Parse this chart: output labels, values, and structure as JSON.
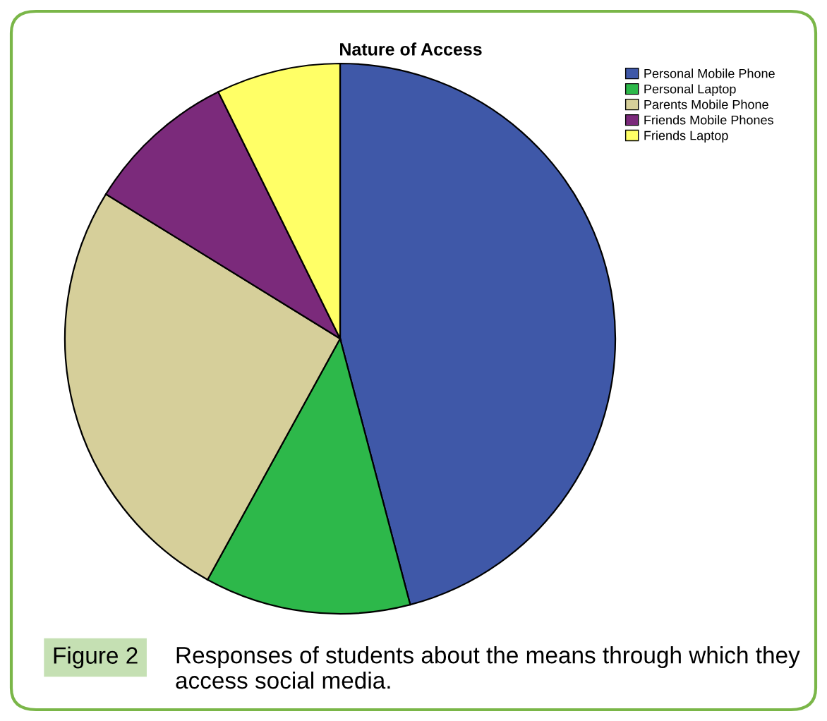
{
  "chart_data": {
    "type": "pie",
    "title": "Nature of Access",
    "categories": [
      "Personal Mobile Phone",
      "Personal Laptop",
      "Parents Mobile Phone",
      "Friends Mobile Phones",
      "Friends Laptop"
    ],
    "values": [
      45.9,
      12.1,
      25.8,
      8.9,
      7.3
    ],
    "colors": [
      "#3f58a8",
      "#2db84a",
      "#d6cf9a",
      "#7b2a7b",
      "#ffff66"
    ],
    "legend": "top right",
    "annotations": [
      "Figure 2",
      "Responses of students about the means through which they access social media."
    ]
  }
}
